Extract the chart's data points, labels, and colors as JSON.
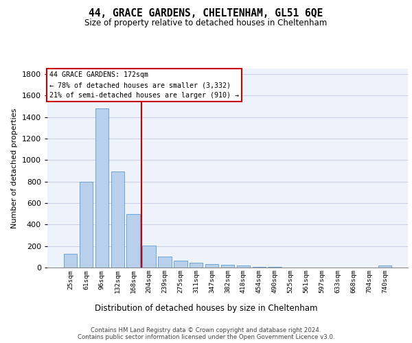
{
  "title1": "44, GRACE GARDENS, CHELTENHAM, GL51 6QE",
  "title2": "Size of property relative to detached houses in Cheltenham",
  "xlabel": "Distribution of detached houses by size in Cheltenham",
  "ylabel": "Number of detached properties",
  "footer1": "Contains HM Land Registry data © Crown copyright and database right 2024.",
  "footer2": "Contains public sector information licensed under the Open Government Licence v3.0.",
  "annotation_line1": "44 GRACE GARDENS: 172sqm",
  "annotation_line2": "← 78% of detached houses are smaller (3,332)",
  "annotation_line3": "21% of semi-detached houses are larger (910) →",
  "bar_color": "#b8d0eb",
  "bar_edge_color": "#5b9bd5",
  "vline_color": "#cc0000",
  "categories": [
    "25sqm",
    "61sqm",
    "96sqm",
    "132sqm",
    "168sqm",
    "204sqm",
    "239sqm",
    "275sqm",
    "311sqm",
    "347sqm",
    "382sqm",
    "418sqm",
    "454sqm",
    "490sqm",
    "525sqm",
    "561sqm",
    "597sqm",
    "633sqm",
    "668sqm",
    "704sqm",
    "740sqm"
  ],
  "values": [
    125,
    795,
    1480,
    890,
    500,
    205,
    105,
    65,
    45,
    35,
    28,
    18,
    8,
    4,
    3,
    2,
    1,
    1,
    1,
    1,
    18
  ],
  "ylim_max": 1850,
  "yticks": [
    0,
    200,
    400,
    600,
    800,
    1000,
    1200,
    1400,
    1600,
    1800
  ],
  "vline_bin_index": 4,
  "grid_color": "#c8cce8",
  "bg_color": "#eef2fa"
}
